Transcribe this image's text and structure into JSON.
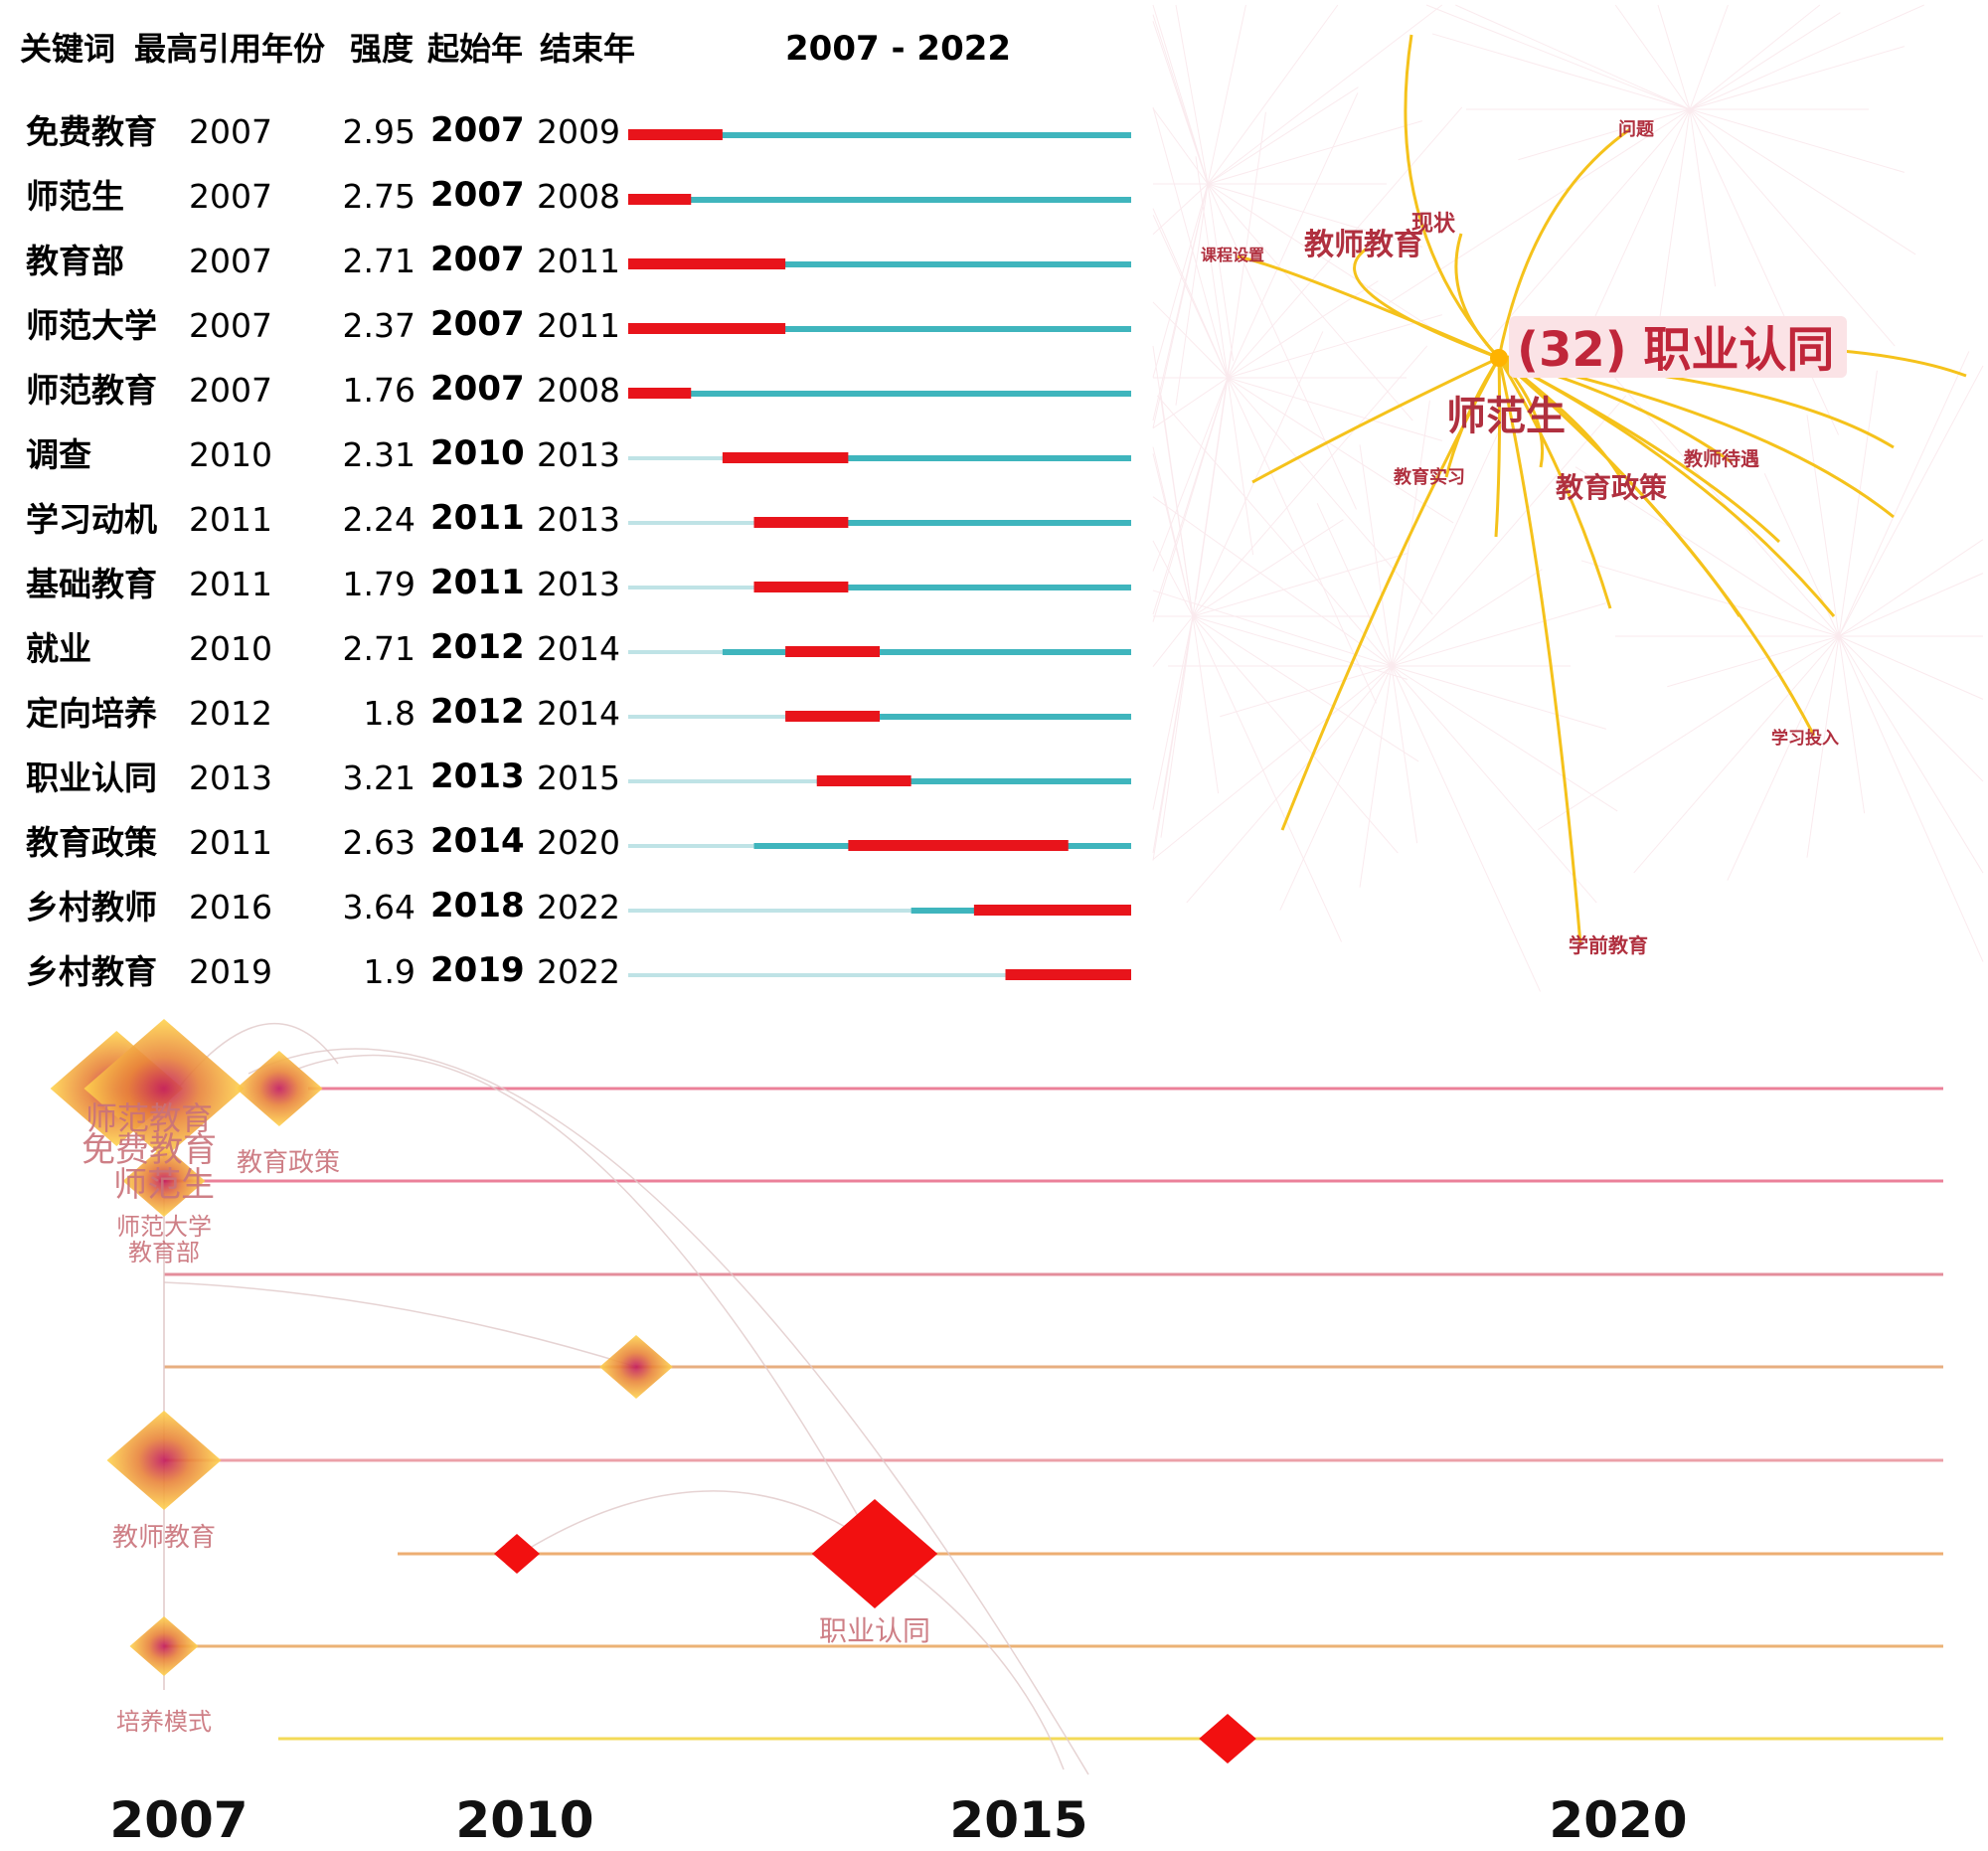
{
  "chart_data": [
    {
      "type": "table",
      "headers": [
        "关键词",
        "最高引用年份",
        "强度",
        "起始年",
        "结束年",
        "2007 - 2022"
      ],
      "xlim": [
        2007,
        2022
      ],
      "rows": [
        {
          "keyword": "免费教育",
          "year": 2007,
          "strength": 2.95,
          "begin": 2007,
          "end": 2009
        },
        {
          "keyword": "师范生",
          "year": 2007,
          "strength": 2.75,
          "begin": 2007,
          "end": 2008
        },
        {
          "keyword": "教育部",
          "year": 2007,
          "strength": 2.71,
          "begin": 2007,
          "end": 2011
        },
        {
          "keyword": "师范大学",
          "year": 2007,
          "strength": 2.37,
          "begin": 2007,
          "end": 2011
        },
        {
          "keyword": "师范教育",
          "year": 2007,
          "strength": 1.76,
          "begin": 2007,
          "end": 2008
        },
        {
          "keyword": "调查",
          "year": 2010,
          "strength": 2.31,
          "begin": 2010,
          "end": 2013
        },
        {
          "keyword": "学习动机",
          "year": 2011,
          "strength": 2.24,
          "begin": 2011,
          "end": 2013
        },
        {
          "keyword": "基础教育",
          "year": 2011,
          "strength": 1.79,
          "begin": 2011,
          "end": 2013
        },
        {
          "keyword": "就业",
          "year": 2010,
          "strength": 2.71,
          "begin": 2012,
          "end": 2014
        },
        {
          "keyword": "定向培养",
          "year": 2012,
          "strength": 1.8,
          "begin": 2012,
          "end": 2014
        },
        {
          "keyword": "职业认同",
          "year": 2013,
          "strength": 3.21,
          "begin": 2013,
          "end": 2015
        },
        {
          "keyword": "教育政策",
          "year": 2011,
          "strength": 2.63,
          "begin": 2014,
          "end": 2020
        },
        {
          "keyword": "乡村教师",
          "year": 2016,
          "strength": 3.64,
          "begin": 2018,
          "end": 2022
        },
        {
          "keyword": "乡村教育",
          "year": 2019,
          "strength": 1.9,
          "begin": 2019,
          "end": 2022
        }
      ]
    },
    {
      "type": "network",
      "center": "(32) 职业认同",
      "labels": [
        {
          "text": "职业认同",
          "size": "large"
        },
        {
          "text": "师范生",
          "size": "large"
        },
        {
          "text": "教师教育",
          "size": "medium"
        },
        {
          "text": "现状",
          "size": "small"
        },
        {
          "text": "教育政策",
          "size": "medium"
        },
        {
          "text": "教育实习",
          "size": "small"
        },
        {
          "text": "教师待遇",
          "size": "small"
        },
        {
          "text": "问题",
          "size": "small"
        },
        {
          "text": "课程设置",
          "size": "small"
        },
        {
          "text": "学习投入",
          "size": "small"
        },
        {
          "text": "学前教育",
          "size": "small"
        }
      ]
    },
    {
      "type": "timeline",
      "xlim": [
        2007,
        2022
      ],
      "x_ticks": [
        2007,
        2010,
        2015,
        2020
      ],
      "nodes": [
        {
          "label": "师范教育",
          "year": 2007,
          "track": 0,
          "size": 3
        },
        {
          "label": "免费教育",
          "year": 2007,
          "track": 0,
          "size": 3
        },
        {
          "label": "教育政策",
          "year": 2008,
          "track": 0,
          "size": 1
        },
        {
          "label": "师范生",
          "year": 2007,
          "track": 1,
          "size": 2
        },
        {
          "label": "师范大学",
          "year": 2007,
          "track": 1,
          "size": 1
        },
        {
          "label": "教育部",
          "year": 2007,
          "track": 2,
          "size": 1
        },
        {
          "label": "",
          "year": 2010.7,
          "track": 3,
          "size": 1
        },
        {
          "label": "教师教育",
          "year": 2007,
          "track": 4,
          "size": 2
        },
        {
          "label": "",
          "year": 2010,
          "track": 5,
          "size": 0.6
        },
        {
          "label": "职业认同",
          "year": 2013,
          "track": 5,
          "size": 2
        },
        {
          "label": "培养模式",
          "year": 2007,
          "track": 6,
          "size": 1
        },
        {
          "label": "",
          "year": 2016.5,
          "track": 7,
          "size": 0.8
        }
      ]
    }
  ]
}
